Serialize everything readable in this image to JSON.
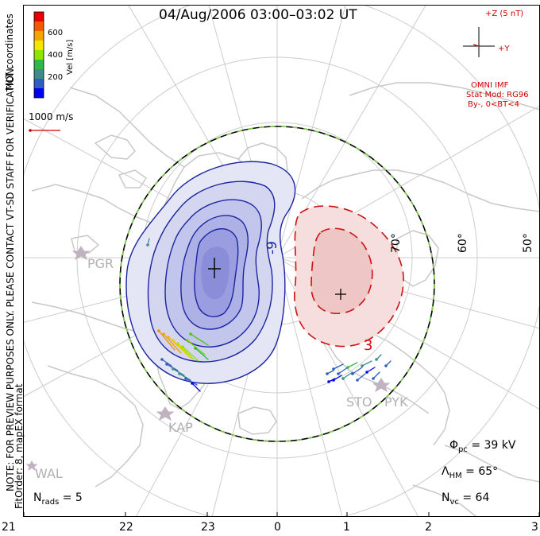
{
  "title": "04/Aug/2006 03:00–03:02 UT",
  "side_notes": {
    "coordinates": "MLT coordinates",
    "verification": "NOTE: FOR PREVIEW PURPOSES ONLY. PLEASE CONTACT VT-SD STAFF FOR VERIFICATION.",
    "fit_order": "FitOrder: 8, mapEX format"
  },
  "color_scale": {
    "label": "Vel [m/s]",
    "ticks": [
      "600",
      "400",
      "200"
    ],
    "colors": [
      "#e60000",
      "#f05a00",
      "#f5a500",
      "#f5e600",
      "#8ce600",
      "#2eb84a",
      "#3c8c8c",
      "#2e5fbf",
      "#0000f0"
    ]
  },
  "velocity_reference": {
    "label": "1000 m/s"
  },
  "imf": {
    "z_label": "+Z (5 nT)",
    "y_label": "+Y",
    "source": "OMNI IMF",
    "model": "Stat Mod: RG96",
    "conditions": "By-, 0<BT<4"
  },
  "latitude_labels": [
    "70°",
    "60°",
    "50°"
  ],
  "contour_labels": {
    "negative": "-9",
    "positive": "3"
  },
  "stations": [
    {
      "code": "PGR"
    },
    {
      "code": "KAP"
    },
    {
      "code": "WAL"
    },
    {
      "code": "STO"
    },
    {
      "code": "PYK"
    }
  ],
  "stats": {
    "phi_pc": {
      "symbol": "Φ",
      "sub": "pc",
      "value": " = 39 kV"
    },
    "lambda_hm": {
      "symbol": "Λ",
      "sub": "HM",
      "value": " = 65°"
    },
    "n_vc": {
      "symbol": "N",
      "sub": "vc",
      "value": " = 64"
    },
    "n_rads": {
      "symbol": "N",
      "sub": "rads",
      "value": " = 5"
    }
  },
  "mlt_axis": [
    "21",
    "22",
    "23",
    "0",
    "1",
    "2",
    "3"
  ],
  "colors": {
    "negative_fill": "#c4c6ee",
    "negative_line": "#1a24a0",
    "positive_fill": "#f2c8c8",
    "positive_line": "#d01010",
    "grid": "#cccccc",
    "coast": "#c8c8c8",
    "boundary_dash": "#7fd24a"
  }
}
